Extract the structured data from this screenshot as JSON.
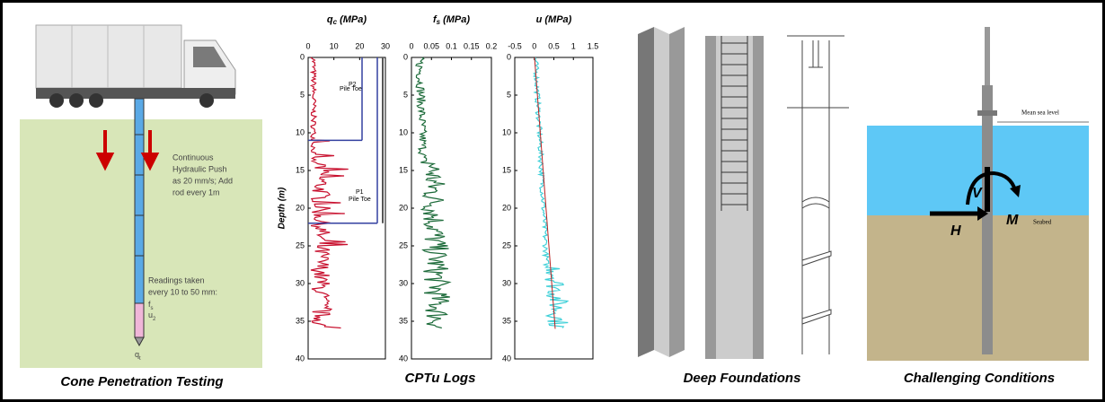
{
  "panels": [
    {
      "caption": "Cone Penetration Testing",
      "notes": [
        "Continuous",
        "Hydraulic Push",
        "as 20 mm/s; Add",
        "rod every 1m",
        "Readings taken",
        "every 10 to 50 mm:"
      ],
      "symbols": [
        "f",
        "s",
        "u",
        "2",
        "q",
        "t"
      ]
    },
    {
      "caption": "CPTu Logs",
      "depth_label": "Depth (m)",
      "depth_ticks": [
        0,
        5,
        10,
        15,
        20,
        25,
        30,
        35,
        40
      ],
      "plots": [
        {
          "symbol": "q",
          "subscript": "c",
          "unit": "(MPa)",
          "ticks": [
            0,
            10,
            20,
            30
          ]
        },
        {
          "symbol": "f",
          "subscript": "s",
          "unit": "(MPa)",
          "ticks": [
            0,
            0.05,
            0.1,
            0.15,
            0.2
          ]
        },
        {
          "symbol": "u",
          "unit": "(MPa)",
          "ticks": [
            -0.5,
            0,
            0.5,
            1,
            1.5
          ]
        }
      ],
      "annotations": [
        "P2",
        "Pile Toe",
        "P1",
        "Pile Toe"
      ]
    },
    {
      "caption": "Deep Foundations"
    },
    {
      "caption": "Challenging Conditions",
      "labels": [
        "Mean sea level",
        "Seabed",
        "V",
        "M",
        "H"
      ]
    }
  ]
}
